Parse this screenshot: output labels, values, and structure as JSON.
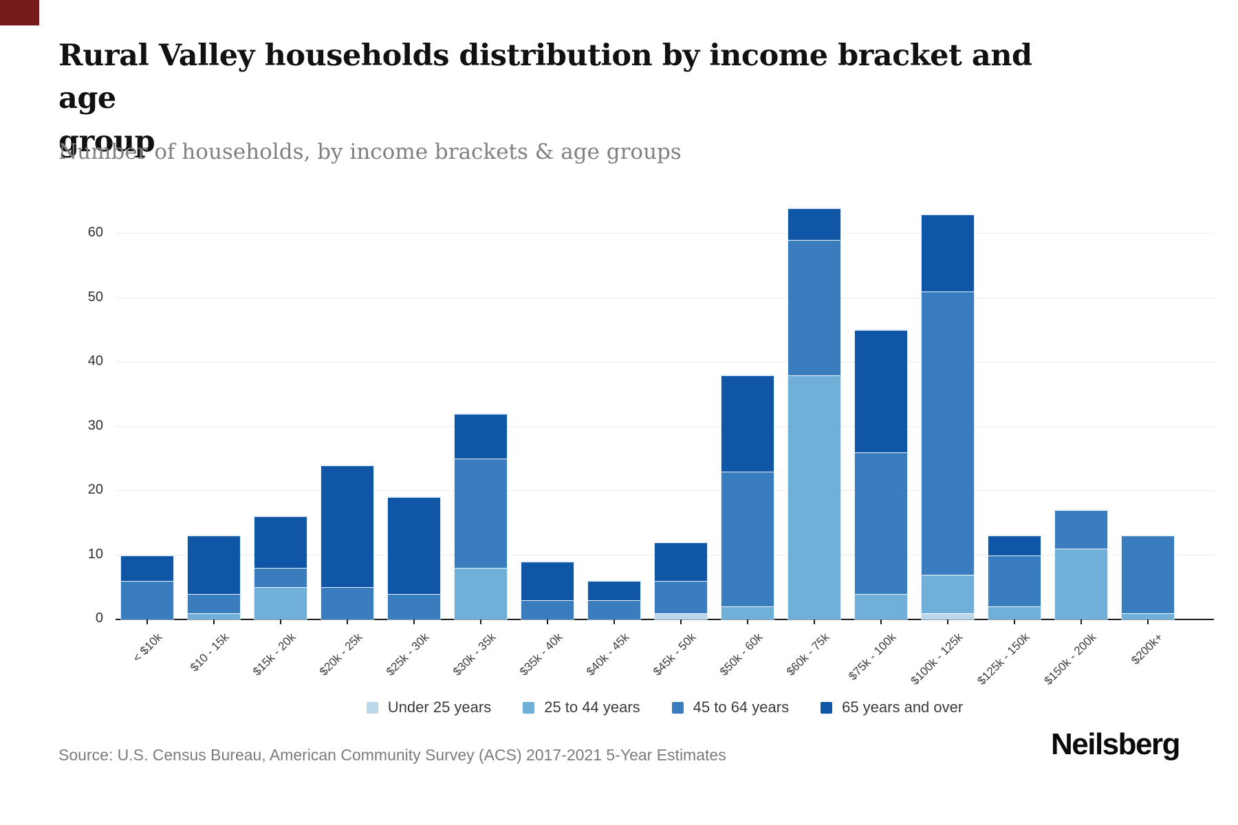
{
  "page": {
    "title": "Rural Valley households distribution by income bracket and age\ngroup",
    "subtitle": "Number of households, by income brackets & age groups",
    "source": "Source: U.S. Census Bureau, American Community Survey (ACS) 2017-2021 5-Year Estimates",
    "brand": "Neilsberg"
  },
  "decorations": {
    "corner_accent_color": "#761a1a"
  },
  "chart_data": {
    "type": "bar",
    "stacked": true,
    "title": "Rural Valley households distribution by income bracket and age group",
    "subtitle": "Number of households, by income brackets & age groups",
    "xlabel": "",
    "ylabel": "Number of households",
    "grid": true,
    "legend_position": "bottom",
    "categories": [
      "< $10k",
      "$10 - 15k",
      "$15k - 20k",
      "$20k - 25k",
      "$25k - 30k",
      "$30k - 35k",
      "$35k - 40k",
      "$40k - 45k",
      "$45k - 50k",
      "$50k - 60k",
      "$60k - 75k",
      "$75k - 100k",
      "$100k - 125k",
      "$125k - 150k",
      "$150k - 200k",
      "$200k+"
    ],
    "series": [
      {
        "name": "Under 25 years",
        "color": "#bdd7ea",
        "values": [
          0,
          0,
          0,
          0,
          0,
          0,
          0,
          0,
          1,
          0,
          0,
          0,
          1,
          0,
          0,
          0
        ]
      },
      {
        "name": "25 to 44 years",
        "color": "#6fafd8",
        "values": [
          0,
          1,
          5,
          0,
          0,
          8,
          0,
          0,
          0,
          2,
          38,
          4,
          6,
          2,
          11,
          1
        ]
      },
      {
        "name": "45 to 64 years",
        "color": "#3a7dbf",
        "values": [
          6,
          3,
          3,
          5,
          4,
          17,
          3,
          3,
          5,
          21,
          21,
          22,
          44,
          8,
          6,
          12
        ]
      },
      {
        "name": "65 years and over",
        "color": "#0f57a6",
        "values": [
          4,
          9,
          8,
          19,
          15,
          7,
          6,
          3,
          6,
          15,
          5,
          19,
          12,
          3,
          0,
          0
        ]
      }
    ],
    "totals": [
      10,
      13,
      16,
      24,
      19,
      32,
      9,
      6,
      12,
      38,
      64,
      45,
      63,
      13,
      17,
      13
    ],
    "y_axis": {
      "ticks": [
        0,
        10,
        20,
        30,
        40,
        50,
        60
      ],
      "max": 64
    }
  }
}
